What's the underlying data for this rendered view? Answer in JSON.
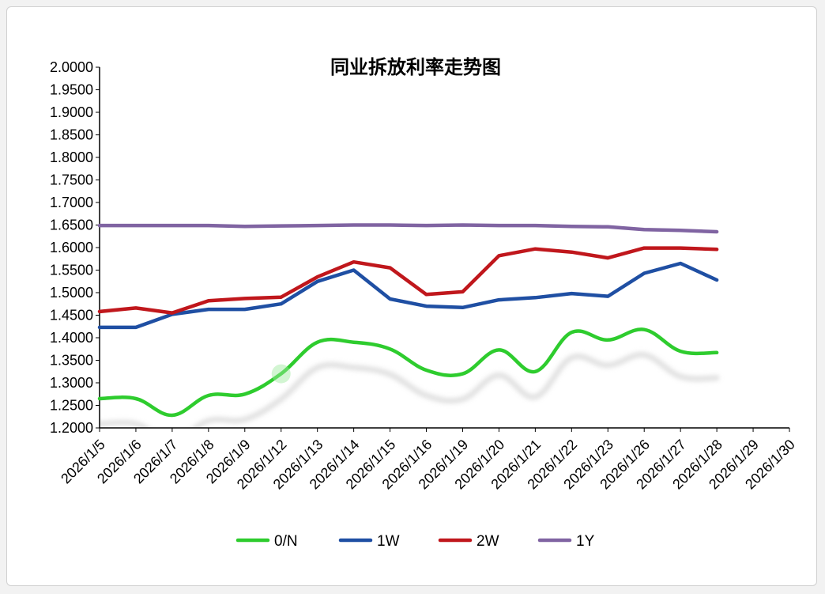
{
  "chart_data": {
    "type": "line",
    "title": "同业拆放利率走势图",
    "xlabel": "",
    "ylabel": "",
    "ylim": [
      1.2,
      2.0
    ],
    "ytick_step": 0.05,
    "grid": false,
    "legend_position": "bottom",
    "categories": [
      "2026/1/5",
      "2026/1/6",
      "2026/1/7",
      "2026/1/8",
      "2026/1/9",
      "2026/1/12",
      "2026/1/13",
      "2026/1/14",
      "2026/1/15",
      "2026/1/16",
      "2026/1/19",
      "2026/1/20",
      "2026/1/21",
      "2026/1/22",
      "2026/1/23",
      "2026/1/26",
      "2026/1/27",
      "2026/1/28",
      "2026/1/29",
      "2026/1/30"
    ],
    "series": [
      {
        "name": "0/N",
        "color": "#2ecc2e",
        "smooth": true,
        "values": [
          1.265,
          1.265,
          1.228,
          1.272,
          1.275,
          1.32,
          1.39,
          1.39,
          1.375,
          1.328,
          1.32,
          1.373,
          1.325,
          1.412,
          1.395,
          1.418,
          1.37,
          1.367,
          null,
          null
        ]
      },
      {
        "name": "1W",
        "color": "#1f4fa3",
        "smooth": false,
        "values": [
          1.423,
          1.423,
          1.452,
          1.463,
          1.463,
          1.475,
          1.525,
          1.55,
          1.486,
          1.47,
          1.467,
          1.484,
          1.489,
          1.498,
          1.492,
          1.543,
          1.565,
          1.528,
          null,
          null
        ]
      },
      {
        "name": "2W",
        "color": "#c0171c",
        "smooth": false,
        "values": [
          1.458,
          1.466,
          1.455,
          1.482,
          1.487,
          1.49,
          1.535,
          1.568,
          1.555,
          1.496,
          1.502,
          1.582,
          1.597,
          1.59,
          1.577,
          1.599,
          1.599,
          1.596,
          null,
          null
        ]
      },
      {
        "name": "1Y",
        "color": "#8064a2",
        "smooth": false,
        "values": [
          1.649,
          1.649,
          1.649,
          1.649,
          1.647,
          1.648,
          1.649,
          1.65,
          1.65,
          1.649,
          1.65,
          1.649,
          1.649,
          1.647,
          1.646,
          1.64,
          1.638,
          1.635,
          null,
          null
        ]
      }
    ]
  }
}
